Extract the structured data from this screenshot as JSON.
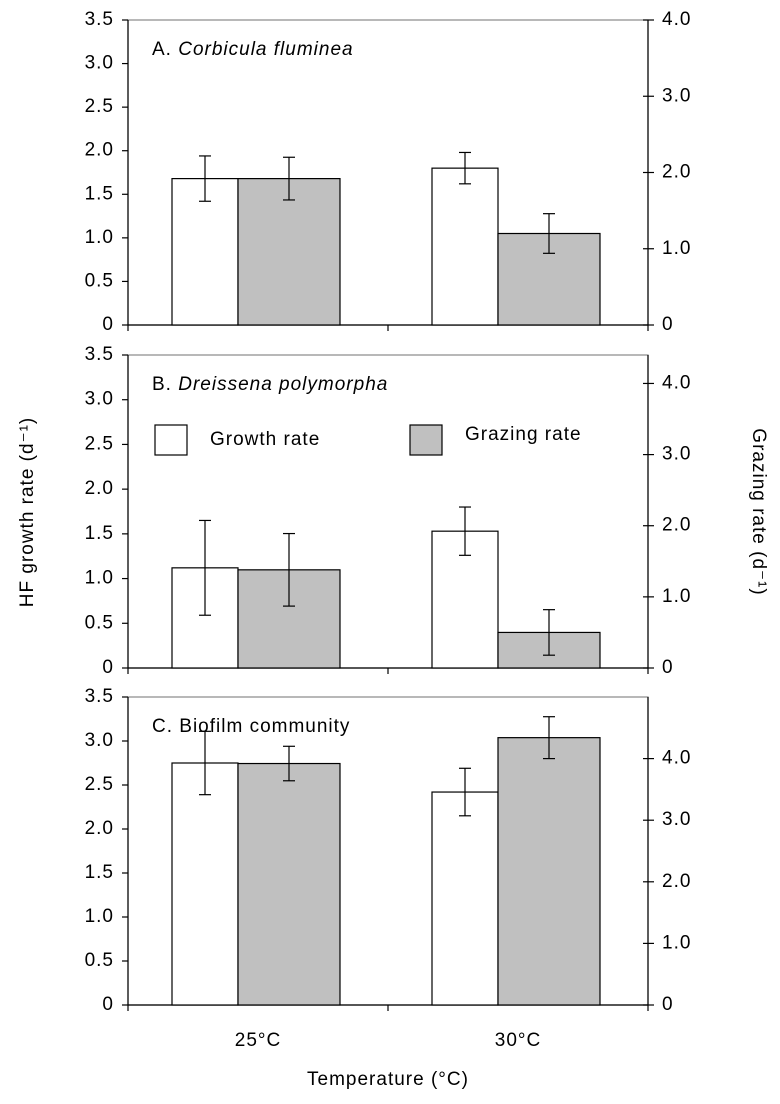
{
  "shared": {
    "y_label": "HF growth rate (d⁻¹)",
    "y2_label": "Grazing rate (d⁻¹)",
    "x_label": "Temperature (°C)"
  },
  "chart_data": [
    {
      "type": "bar",
      "panel_label": "A.",
      "title": "Corbicula fluminea",
      "title_italic": true,
      "ylim": [
        0,
        3.5
      ],
      "yticks": [
        0,
        0.5,
        {
          "value": 1,
          "label": "1.0"
        },
        1.5,
        {
          "value": 2,
          "label": "2.0"
        },
        2.5,
        {
          "value": 3,
          "label": "3.0"
        },
        3.5
      ],
      "y2lim": [
        0,
        4.0
      ],
      "y2ticks": [
        0,
        {
          "value": 1,
          "label": "1.0"
        },
        {
          "value": 2,
          "label": "2.0"
        },
        {
          "value": 3,
          "label": "3.0"
        },
        {
          "value": 4,
          "label": "4.0"
        }
      ],
      "series": [
        {
          "color": "#ffffff",
          "values": [
            1.68,
            1.8
          ],
          "errors": [
            0.26,
            0.18
          ]
        },
        {
          "color": "#c0c0c0",
          "axis": "y2",
          "values": [
            1.92,
            1.2
          ],
          "errors": [
            0.28,
            0.26
          ]
        }
      ]
    },
    {
      "type": "bar",
      "panel_label": "B.",
      "title": "Dreissena polymorpha",
      "title_italic": true,
      "ylim": [
        0,
        3.5
      ],
      "yticks": [
        0,
        0.5,
        {
          "value": 1,
          "label": "1.0"
        },
        1.5,
        {
          "value": 2,
          "label": "2.0"
        },
        2.5,
        {
          "value": 3,
          "label": "3.0"
        },
        3.5
      ],
      "y2lim": [
        0,
        4.4
      ],
      "y2ticks": [
        0,
        {
          "value": 1,
          "label": "1.0"
        },
        {
          "value": 2,
          "label": "2.0"
        },
        {
          "value": 3,
          "label": "3.0"
        },
        {
          "value": 4,
          "label": "4.0"
        }
      ],
      "legend": "top",
      "series": [
        {
          "name": "Growth rate",
          "color": "#ffffff",
          "values": [
            1.12,
            1.53
          ],
          "errors": [
            0.53,
            0.27
          ]
        },
        {
          "name": "Grazing rate",
          "color": "#c0c0c0",
          "axis": "y2",
          "values": [
            1.38,
            0.5
          ],
          "errors": [
            0.51,
            0.32
          ]
        }
      ]
    },
    {
      "type": "bar",
      "panel_label": "C.",
      "title": "Biofilm community",
      "title_italic": false,
      "categories": [
        "25°C",
        "30°C"
      ],
      "ylim": [
        0,
        3.5
      ],
      "yticks": [
        0,
        0.5,
        {
          "value": 1,
          "label": "1.0"
        },
        1.5,
        {
          "value": 2,
          "label": "2.0"
        },
        2.5,
        {
          "value": 3,
          "label": "3.0"
        },
        3.5
      ],
      "y2lim": [
        0,
        5.0
      ],
      "y2ticks": [
        0,
        {
          "value": 1,
          "label": "1.0"
        },
        {
          "value": 2,
          "label": "2.0"
        },
        {
          "value": 3,
          "label": "3.0"
        },
        {
          "value": 4,
          "label": "4.0"
        }
      ],
      "series": [
        {
          "color": "#ffffff",
          "values": [
            2.75,
            2.42
          ],
          "errors": [
            0.36,
            0.27
          ]
        },
        {
          "color": "#c0c0c0",
          "axis": "y2",
          "values": [
            3.92,
            4.34
          ],
          "errors": [
            0.28,
            0.34
          ]
        }
      ]
    }
  ]
}
